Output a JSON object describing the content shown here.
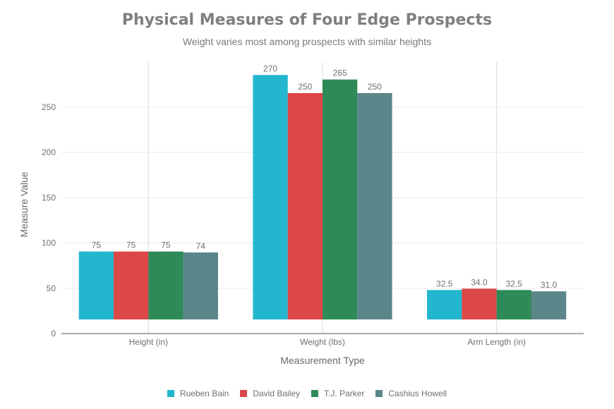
{
  "chart_data": {
    "type": "bar",
    "title": "Physical Measures of Four Edge Prospects",
    "subtitle": "Weight varies most among prospects with similar heights",
    "xlabel": "Measurement Type",
    "ylabel": "Measure Value",
    "categories": [
      "Height (in)",
      "Weight (lbs)",
      "Arm Length (in)"
    ],
    "ylim": [
      0,
      290
    ],
    "yticks": [
      0,
      50,
      100,
      150,
      200,
      250
    ],
    "series": [
      {
        "name": "Rueben Bain",
        "color": "#22b7ce",
        "values": [
          75,
          270,
          32.5
        ],
        "labels": [
          "75",
          "270",
          "32.5"
        ]
      },
      {
        "name": "David Bailey",
        "color": "#dc4747",
        "values": [
          75,
          250,
          34.0
        ],
        "labels": [
          "75",
          "250",
          "34.0"
        ]
      },
      {
        "name": "T.J. Parker",
        "color": "#2e8b57",
        "values": [
          75,
          265,
          32.5
        ],
        "labels": [
          "75",
          "265",
          "32.5"
        ]
      },
      {
        "name": "Cashius Howell",
        "color": "#5b868a",
        "values": [
          74,
          250,
          31.0
        ],
        "labels": [
          "74",
          "250",
          "31.0"
        ]
      }
    ],
    "legend_position": "bottom-center",
    "grid": true
  }
}
